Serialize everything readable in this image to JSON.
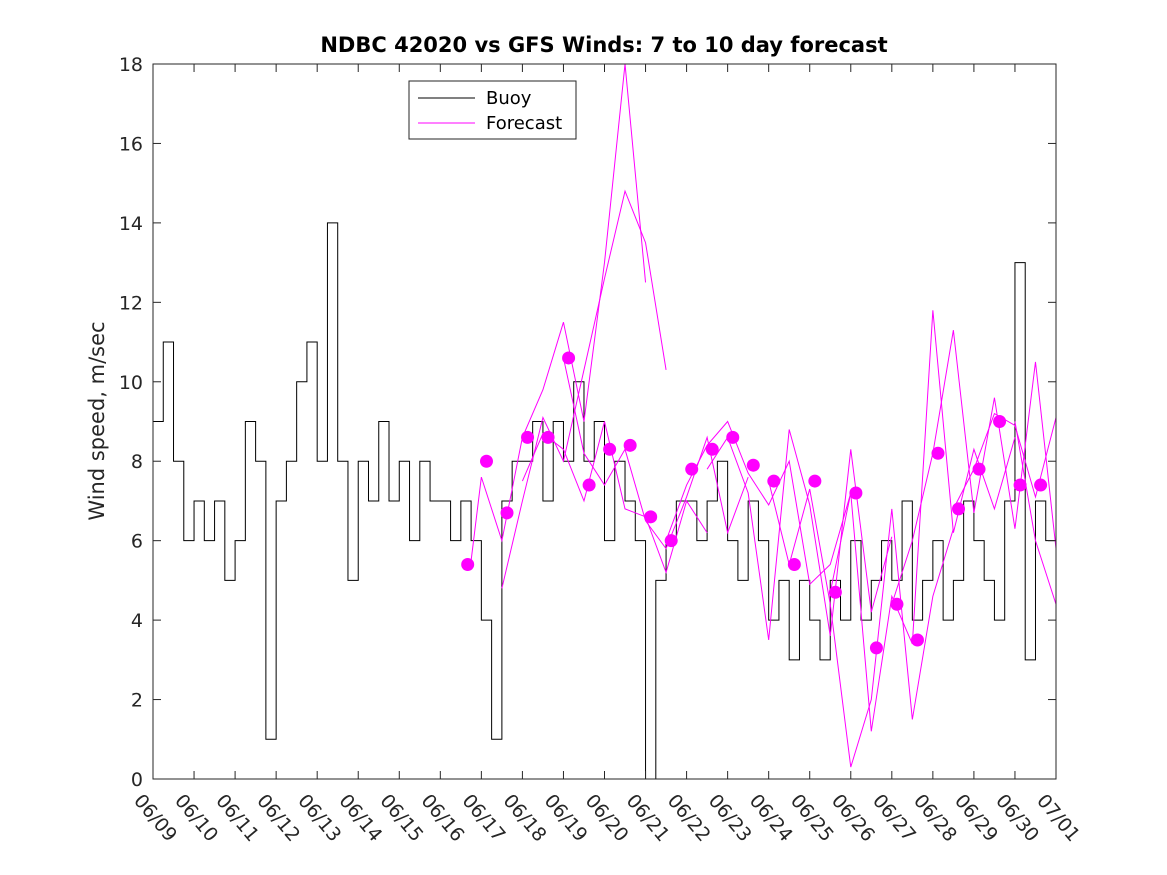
{
  "chart_data": {
    "type": "line",
    "title": "NDBC 42020 vs GFS Winds: 7 to 10 day forecast",
    "xlabel": "",
    "ylabel": "Wind speed, m/sec",
    "ylim": [
      0,
      18
    ],
    "yticks": [
      0,
      2,
      4,
      6,
      8,
      10,
      12,
      14,
      16,
      18
    ],
    "xlim": [
      "2019-06-09",
      "2019-07-01"
    ],
    "xtick_labels": [
      "06/09",
      "06/10",
      "06/11",
      "06/12",
      "06/13",
      "06/14",
      "06/15",
      "06/16",
      "06/17",
      "06/18",
      "06/19",
      "06/20",
      "06/21",
      "06/22",
      "06/23",
      "06/24",
      "06/25",
      "06/26",
      "06/27",
      "06/28",
      "06/29",
      "06/30",
      "07/01"
    ],
    "grid": false,
    "legend": {
      "position": "top-left",
      "entries": [
        "Buoy",
        "Forecast"
      ]
    },
    "colors": {
      "buoy": "#000000",
      "forecast": "#ff00ff"
    },
    "series": [
      {
        "name": "Buoy",
        "x": [
          "06/09 00:00",
          "06/09 06:00",
          "06/09 12:00",
          "06/09 18:00",
          "06/10 00:00",
          "06/10 06:00",
          "06/10 12:00",
          "06/10 18:00",
          "06/11 00:00",
          "06/11 06:00",
          "06/11 12:00",
          "06/11 18:00",
          "06/12 00:00",
          "06/12 06:00",
          "06/12 12:00",
          "06/12 18:00",
          "06/13 00:00",
          "06/13 06:00",
          "06/13 12:00",
          "06/13 18:00",
          "06/14 00:00",
          "06/14 06:00",
          "06/14 12:00",
          "06/14 18:00",
          "06/15 00:00",
          "06/15 06:00",
          "06/15 12:00",
          "06/15 18:00",
          "06/16 00:00",
          "06/16 06:00",
          "06/16 12:00",
          "06/16 18:00",
          "06/17 00:00",
          "06/17 06:00",
          "06/17 12:00",
          "06/17 18:00",
          "06/18 00:00",
          "06/18 06:00",
          "06/18 12:00",
          "06/18 18:00",
          "06/19 00:00",
          "06/19 06:00",
          "06/19 12:00",
          "06/19 18:00",
          "06/20 00:00",
          "06/20 06:00",
          "06/20 12:00",
          "06/20 18:00",
          "06/21 00:00",
          "06/21 06:00",
          "06/21 12:00",
          "06/21 18:00",
          "06/22 00:00",
          "06/22 06:00",
          "06/22 12:00",
          "06/22 18:00",
          "06/23 00:00",
          "06/23 06:00",
          "06/23 12:00",
          "06/23 18:00",
          "06/24 00:00",
          "06/24 06:00",
          "06/24 12:00",
          "06/24 18:00",
          "06/25 00:00",
          "06/25 06:00",
          "06/25 12:00",
          "06/25 18:00",
          "06/26 00:00",
          "06/26 06:00",
          "06/26 12:00",
          "06/26 18:00",
          "06/27 00:00",
          "06/27 06:00",
          "06/27 12:00",
          "06/27 18:00",
          "06/28 00:00",
          "06/28 06:00",
          "06/28 12:00",
          "06/28 18:00",
          "06/29 00:00",
          "06/29 06:00",
          "06/29 12:00",
          "06/29 18:00",
          "06/30 00:00",
          "06/30 06:00",
          "06/30 12:00",
          "06/30 18:00"
        ],
        "y": [
          9,
          11,
          8,
          6,
          7,
          6,
          7,
          5,
          6,
          9,
          8,
          1,
          7,
          8,
          10,
          11,
          8,
          14,
          8,
          5,
          8,
          7,
          9,
          7,
          8,
          6,
          8,
          7,
          7,
          6,
          7,
          6,
          4,
          1,
          7,
          8,
          8,
          9,
          7,
          9,
          8,
          10,
          8,
          9,
          6,
          8,
          7,
          6,
          0,
          5,
          6,
          7,
          7,
          6,
          7,
          8,
          6,
          5,
          7,
          6,
          4,
          5,
          3,
          5,
          4,
          3,
          5,
          4,
          6,
          4,
          5,
          6,
          5,
          7,
          4,
          5,
          6,
          4,
          5,
          7,
          6,
          5,
          4,
          7,
          13,
          3,
          7,
          6
        ]
      },
      {
        "name": "Forecast",
        "x": [
          "06/16 18:00",
          "06/17 00:00",
          "06/17 12:00",
          "06/18 00:00",
          "06/18 12:00",
          "06/19 00:00",
          "06/19 12:00",
          "06/20 00:00",
          "06/20 12:00",
          "06/21 00:00"
        ],
        "y": [
          5.5,
          7.6,
          6.0,
          8.6,
          9.8,
          11.5,
          9.0,
          13.0,
          18.0,
          12.5
        ]
      },
      {
        "name": "Forecast",
        "x": [
          "06/17 12:00",
          "06/18 00:00",
          "06/18 12:00",
          "06/19 00:00",
          "06/19 12:00",
          "06/20 00:00",
          "06/20 12:00",
          "06/21 00:00",
          "06/21 12:00"
        ],
        "y": [
          4.8,
          7.0,
          9.1,
          8.0,
          10.3,
          12.6,
          14.8,
          13.5,
          10.3
        ]
      },
      {
        "name": "Forecast",
        "x": [
          "06/18 00:00",
          "06/18 12:00",
          "06/19 00:00",
          "06/19 12:00",
          "06/20 00:00",
          "06/20 12:00",
          "06/21 00:00",
          "06/21 12:00",
          "06/22 00:00",
          "06/22 12:00"
        ],
        "y": [
          7.5,
          8.7,
          8.3,
          7.0,
          9.0,
          6.8,
          6.6,
          5.2,
          7.0,
          6.2
        ]
      },
      {
        "name": "Forecast",
        "x": [
          "06/19 00:00",
          "06/19 12:00",
          "06/20 00:00",
          "06/20 12:00",
          "06/21 00:00",
          "06/21 12:00",
          "06/22 00:00",
          "06/22 12:00",
          "06/23 00:00",
          "06/23 12:00"
        ],
        "y": [
          10.6,
          8.2,
          7.4,
          8.3,
          6.5,
          5.8,
          7.1,
          8.6,
          6.2,
          7.6
        ]
      },
      {
        "name": "Forecast",
        "x": [
          "06/21 12:00",
          "06/22 00:00",
          "06/22 12:00",
          "06/23 00:00",
          "06/23 12:00",
          "06/24 00:00",
          "06/24 12:00",
          "06/25 00:00",
          "06/25 12:00",
          "06/26 00:00"
        ],
        "y": [
          6.0,
          7.4,
          8.4,
          9.0,
          7.7,
          6.9,
          8.0,
          4.9,
          5.4,
          7.2
        ]
      },
      {
        "name": "Forecast",
        "x": [
          "06/22 12:00",
          "06/23 00:00",
          "06/23 12:00",
          "06/24 00:00",
          "06/24 12:00",
          "06/25 00:00",
          "06/25 12:00",
          "06/26 00:00",
          "06/26 12:00",
          "06/27 00:00"
        ],
        "y": [
          7.8,
          8.6,
          7.2,
          3.5,
          8.8,
          6.9,
          3.6,
          8.3,
          4.2,
          6.1
        ]
      },
      {
        "name": "Forecast",
        "x": [
          "06/24 00:00",
          "06/24 12:00",
          "06/25 00:00",
          "06/25 12:00",
          "06/26 00:00",
          "06/26 12:00",
          "06/27 00:00",
          "06/27 12:00",
          "06/28 00:00",
          "06/28 12:00"
        ],
        "y": [
          7.5,
          5.4,
          7.3,
          4.4,
          0.3,
          2.0,
          6.8,
          1.5,
          4.6,
          6.3
        ]
      },
      {
        "name": "Forecast",
        "x": [
          "06/25 12:00",
          "06/26 00:00",
          "06/26 12:00",
          "06/27 00:00",
          "06/27 12:00",
          "06/28 00:00",
          "06/28 12:00",
          "06/29 00:00",
          "06/29 12:00",
          "06/30 00:00"
        ],
        "y": [
          4.7,
          7.2,
          1.2,
          4.6,
          3.4,
          11.8,
          6.2,
          8.3,
          6.8,
          8.6
        ]
      },
      {
        "name": "Forecast",
        "x": [
          "06/27 00:00",
          "06/27 12:00",
          "06/28 00:00",
          "06/28 12:00",
          "06/29 00:00",
          "06/29 12:00",
          "06/30 00:00",
          "06/30 12:00",
          "07/01 00:00"
        ],
        "y": [
          4.4,
          6.0,
          8.2,
          11.3,
          6.7,
          9.6,
          6.3,
          10.5,
          5.8
        ]
      },
      {
        "name": "Forecast",
        "x": [
          "06/28 12:00",
          "06/29 00:00",
          "06/29 12:00",
          "06/30 00:00",
          "06/30 12:00",
          "07/01 00:00"
        ],
        "y": [
          6.8,
          7.8,
          9.2,
          8.9,
          7.1,
          9.1
        ]
      },
      {
        "name": "Forecast",
        "x": [
          "06/30 00:00",
          "06/30 12:00",
          "07/01 00:00"
        ],
        "y": [
          9.0,
          6.0,
          4.4
        ]
      }
    ],
    "markers": {
      "name": "Forecast",
      "x": [
        "06/16 16:00",
        "06/17 03:00",
        "06/17 15:00",
        "06/18 03:00",
        "06/18 15:00",
        "06/19 03:00",
        "06/19 15:00",
        "06/20 03:00",
        "06/20 15:00",
        "06/21 03:00",
        "06/21 15:00",
        "06/22 03:00",
        "06/22 15:00",
        "06/23 03:00",
        "06/23 15:00",
        "06/24 03:00",
        "06/24 15:00",
        "06/25 03:00",
        "06/25 15:00",
        "06/26 03:00",
        "06/26 15:00",
        "06/27 03:00",
        "06/27 15:00",
        "06/28 03:00",
        "06/28 15:00",
        "06/29 03:00",
        "06/29 15:00",
        "06/30 03:00",
        "06/30 15:00"
      ],
      "y": [
        5.4,
        8.0,
        6.7,
        8.6,
        8.6,
        10.6,
        7.4,
        8.3,
        8.4,
        6.6,
        6.0,
        7.8,
        8.3,
        8.6,
        7.9,
        7.5,
        5.4,
        7.5,
        4.7,
        7.2,
        3.3,
        4.4,
        3.5,
        8.2,
        6.8,
        7.8,
        9.0,
        7.4,
        7.4
      ]
    }
  }
}
